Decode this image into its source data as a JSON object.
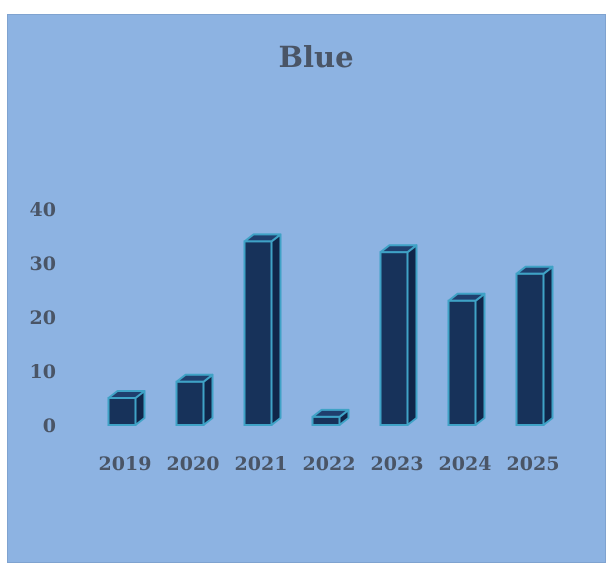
{
  "chart_data": {
    "type": "bar",
    "title": "Blue",
    "xlabel": "",
    "ylabel": "",
    "categories": [
      "2019",
      "2020",
      "2021",
      "2022",
      "2023",
      "2024",
      "2025"
    ],
    "values": [
      5,
      8,
      34,
      1.5,
      32,
      23,
      28
    ],
    "yticks": [
      0,
      10,
      20,
      30,
      40
    ],
    "ylim": [
      0,
      40
    ],
    "grid": false,
    "legend": "none",
    "style": "3d-column",
    "colors": {
      "background": "#8db3e2",
      "bar_front": "#17325a",
      "bar_side": "#10264a",
      "bar_top": "#1f3f6e",
      "bar_edge": "#3fa2c6",
      "text": "#4a5566"
    }
  }
}
